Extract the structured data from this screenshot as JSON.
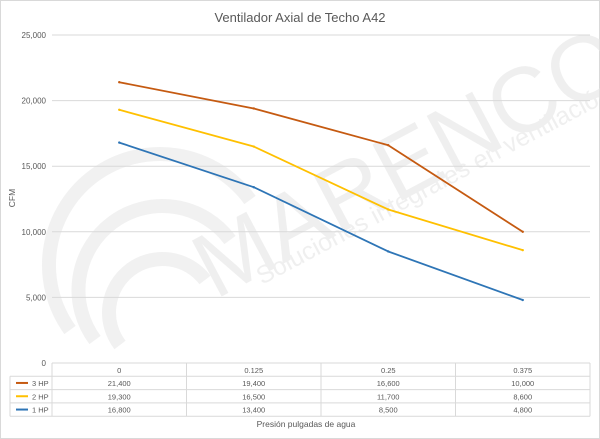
{
  "chart_data": {
    "type": "line",
    "title": "Ventilador Axial de Techo A42",
    "xlabel": "Presión pulgadas de agua",
    "ylabel": "CFM",
    "categories": [
      "0",
      "0.125",
      "0.25",
      "0.375"
    ],
    "ylim": [
      0,
      25000
    ],
    "yticks": [
      "0",
      "5,000",
      "10,000",
      "15,000",
      "20,000",
      "25,000"
    ],
    "grid": true,
    "legend": "data-table",
    "series": [
      {
        "name": "3 HP",
        "color": "#c55a11",
        "values": [
          21400,
          19400,
          16600,
          10000
        ],
        "labels": [
          "21,400",
          "19,400",
          "16,600",
          "10,000"
        ]
      },
      {
        "name": "2 HP",
        "color": "#ffc000",
        "values": [
          19300,
          16500,
          11700,
          8600
        ],
        "labels": [
          "19,300",
          "16,500",
          "11,700",
          "8,600"
        ]
      },
      {
        "name": "1 HP",
        "color": "#2e75b6",
        "values": [
          16800,
          13400,
          8500,
          4800
        ],
        "labels": [
          "16,800",
          "13,400",
          "8,500",
          "4,800"
        ]
      }
    ]
  },
  "watermark": {
    "brand": "MARENCO",
    "tagline": "Soluciones integrales en ventilación"
  }
}
